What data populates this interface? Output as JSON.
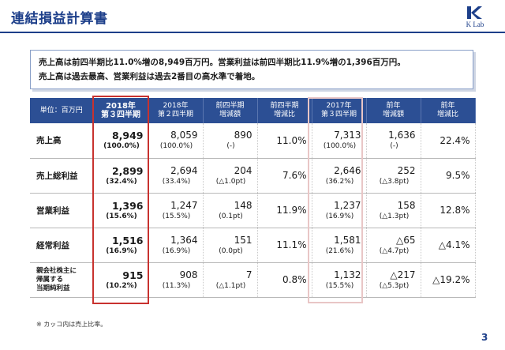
{
  "header": {
    "title": "連結損益計算書",
    "logo_text": "K Lab"
  },
  "summary": {
    "line1": "売上高は前四半期比11.0%増の8,949百万円。営業利益は前四半期比11.9%増の1,396百万円。",
    "line2": "売上高は過去最高、営業利益は過去2番目の高水準で着地。"
  },
  "table": {
    "unit_label": "単位：百万円",
    "columns": [
      {
        "line1": "2018年",
        "line2": "第３四半期"
      },
      {
        "line1": "2018年",
        "line2": "第２四半期"
      },
      {
        "line1": "前四半期",
        "line2": "増減額"
      },
      {
        "line1": "前四半期",
        "line2": "増減比"
      },
      {
        "line1": "2017年",
        "line2": "第３四半期"
      },
      {
        "line1": "前年",
        "line2": "増減額"
      },
      {
        "line1": "前年",
        "line2": "増減比"
      }
    ],
    "rows": [
      {
        "label": "売上高",
        "cur": {
          "v": "8,949",
          "s": "(100.0%)"
        },
        "q2": {
          "v": "8,059",
          "s": "(100.0%)"
        },
        "qoq_diff": {
          "v": "890",
          "s": "(-)"
        },
        "qoq_rate": "11.0%",
        "prev": {
          "v": "7,313",
          "s": "(100.0%)"
        },
        "yoy_diff": {
          "v": "1,636",
          "s": "(-)"
        },
        "yoy_rate": "22.4%"
      },
      {
        "label": "売上総利益",
        "cur": {
          "v": "2,899",
          "s": "(32.4%)"
        },
        "q2": {
          "v": "2,694",
          "s": "(33.4%)"
        },
        "qoq_diff": {
          "v": "204",
          "s": "(△1.0pt)"
        },
        "qoq_rate": "7.6%",
        "prev": {
          "v": "2,646",
          "s": "(36.2%)"
        },
        "yoy_diff": {
          "v": "252",
          "s": "(△3.8pt)"
        },
        "yoy_rate": "9.5%"
      },
      {
        "label": "営業利益",
        "cur": {
          "v": "1,396",
          "s": "(15.6%)"
        },
        "q2": {
          "v": "1,247",
          "s": "(15.5%)"
        },
        "qoq_diff": {
          "v": "148",
          "s": "(0.1pt)"
        },
        "qoq_rate": "11.9%",
        "prev": {
          "v": "1,237",
          "s": "(16.9%)"
        },
        "yoy_diff": {
          "v": "158",
          "s": "(△1.3pt)"
        },
        "yoy_rate": "12.8%"
      },
      {
        "label": "経常利益",
        "cur": {
          "v": "1,516",
          "s": "(16.9%)"
        },
        "q2": {
          "v": "1,364",
          "s": "(16.9%)"
        },
        "qoq_diff": {
          "v": "151",
          "s": "(0.0pt)"
        },
        "qoq_rate": "11.1%",
        "prev": {
          "v": "1,581",
          "s": "(21.6%)"
        },
        "yoy_diff": {
          "v": "△65",
          "s": "(△4.7pt)"
        },
        "yoy_rate": "△4.1%"
      },
      {
        "label": "親会社株主に帰属する当期純利益",
        "label_lines": [
          "親会社株主に",
          "帰属する",
          "当期純利益"
        ],
        "cur": {
          "v": "915",
          "s": "(10.2%)"
        },
        "q2": {
          "v": "908",
          "s": "(11.3%)"
        },
        "qoq_diff": {
          "v": "7",
          "s": "(△1.1pt)"
        },
        "qoq_rate": "0.8%",
        "prev": {
          "v": "1,132",
          "s": "(15.5%)"
        },
        "yoy_diff": {
          "v": "△217",
          "s": "(△5.3pt)"
        },
        "yoy_rate": "△19.2%"
      }
    ]
  },
  "footnote": "※ カッコ内は売上比率。",
  "page_number": "3",
  "colors": {
    "header_blue": "#2c4f94",
    "title_blue": "#1d3f8a",
    "highlight_red": "#c8322f",
    "soft_red": "#e9c6c6"
  }
}
